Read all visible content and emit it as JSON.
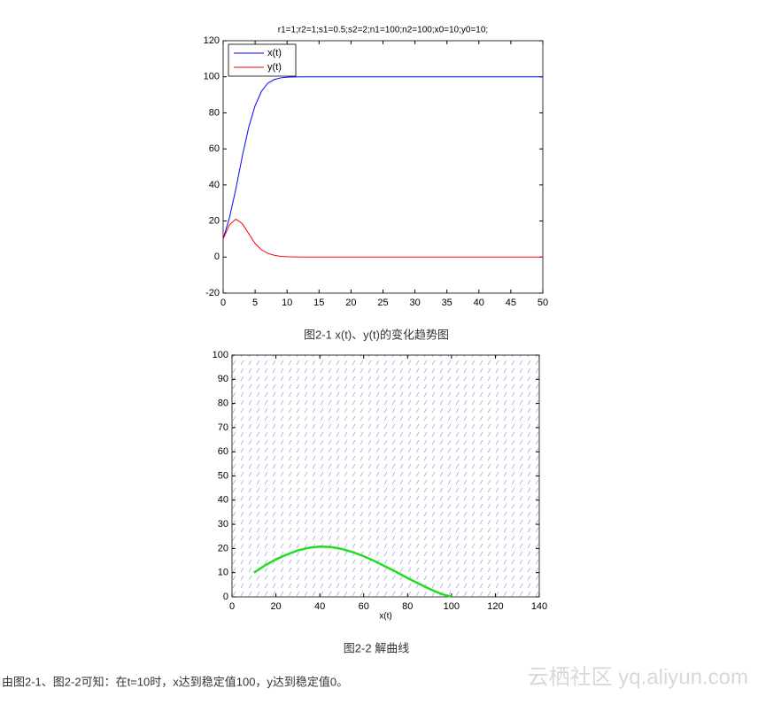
{
  "chart_data": [
    {
      "type": "line",
      "title": "r1=1;r2=1;s1=0.5;s2=2;n1=100;n2=100;x0=10;y0=10;",
      "x": [
        0,
        1,
        2,
        3,
        4,
        5,
        6,
        7,
        8,
        9,
        10,
        12,
        15,
        20,
        30,
        40,
        50
      ],
      "series": [
        {
          "name": "x(t)",
          "color": "#0000ff",
          "values": [
            10,
            22,
            38,
            56,
            72,
            84,
            92,
            96.5,
            98.5,
            99.4,
            99.8,
            100,
            100,
            100,
            100,
            100,
            100
          ]
        },
        {
          "name": "y(t)",
          "color": "#ff0000",
          "values": [
            10,
            18,
            21,
            18.5,
            13,
            7.5,
            4,
            2,
            1,
            0.4,
            0.2,
            0,
            0,
            0,
            0,
            0,
            0
          ]
        }
      ],
      "xlim": [
        0,
        50
      ],
      "xticks": [
        0,
        5,
        10,
        15,
        20,
        25,
        30,
        35,
        40,
        45,
        50
      ],
      "ylim": [
        -20,
        120
      ],
      "yticks": [
        -20,
        0,
        20,
        40,
        60,
        80,
        100,
        120
      ],
      "legend": "upper left"
    },
    {
      "type": "line",
      "xlabel": "x(t)",
      "x": [
        10,
        15,
        20,
        25,
        30,
        35,
        40,
        45,
        50,
        55,
        60,
        65,
        70,
        75,
        80,
        85,
        90,
        95,
        100
      ],
      "series": [
        {
          "color": "#22dd22",
          "values": [
            10,
            13,
            15.5,
            17.5,
            19.2,
            20.3,
            20.8,
            20.6,
            19.8,
            18.5,
            16.8,
            14.8,
            12.5,
            10.2,
            7.8,
            5.5,
            3.3,
            1.3,
            0
          ]
        }
      ],
      "xlim": [
        0,
        140
      ],
      "xticks": [
        0,
        20,
        40,
        60,
        80,
        100,
        120,
        140
      ],
      "ylim": [
        0,
        100
      ],
      "yticks": [
        0,
        10,
        20,
        30,
        40,
        50,
        60,
        70,
        80,
        90,
        100
      ]
    }
  ],
  "document": {
    "captions": [
      "图2-1 x(t)、y(t)的变化趋势图",
      "图2-2 解曲线"
    ],
    "paragraph": "由图2-1、图2-2可知：在t=10时，x达到稳定值100，y达到稳定值0。",
    "watermark": "云栖社区 yq.aliyun.com"
  }
}
